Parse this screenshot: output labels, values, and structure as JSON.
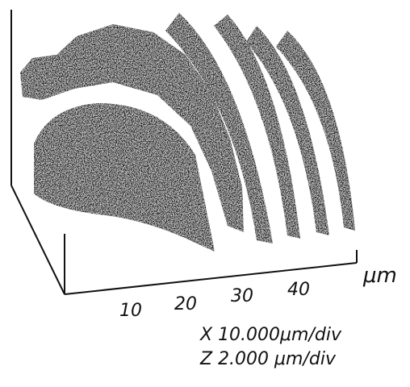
{
  "axis": {
    "unit": "μm",
    "ticks": [
      "10",
      "20",
      "30",
      "40"
    ]
  },
  "scale": [
    "X 10.000μm/div",
    "Z 2.000 μm/div"
  ]
}
